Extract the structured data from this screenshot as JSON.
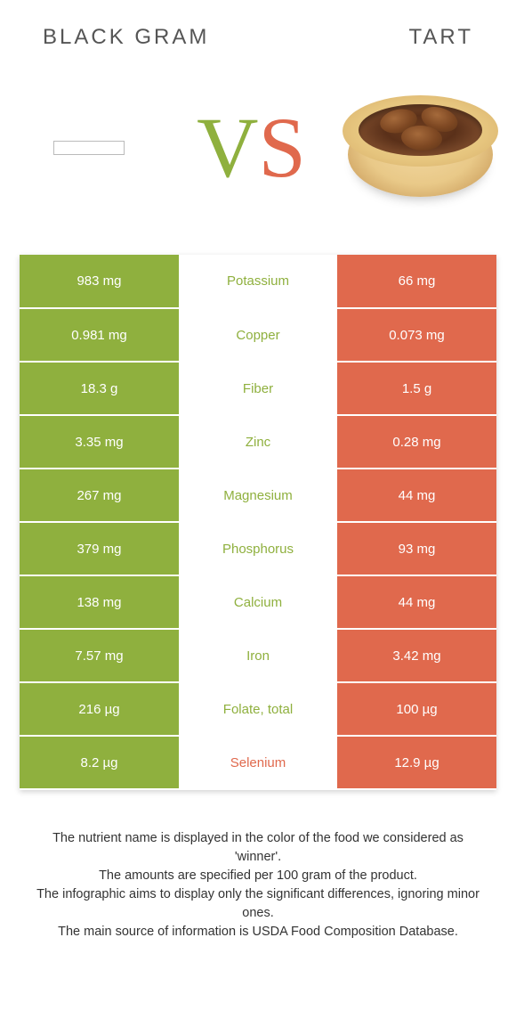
{
  "header": {
    "left": "BLACK GRAM",
    "right": "TART"
  },
  "vs": {
    "v": "V",
    "s": "S"
  },
  "colors": {
    "green": "#8fb03e",
    "orange": "#e0694d",
    "background": "#ffffff",
    "text": "#333333"
  },
  "rows": [
    {
      "left": "983 mg",
      "nutrient": "Potassium",
      "right": "66 mg",
      "winner": "green"
    },
    {
      "left": "0.981 mg",
      "nutrient": "Copper",
      "right": "0.073 mg",
      "winner": "green"
    },
    {
      "left": "18.3 g",
      "nutrient": "Fiber",
      "right": "1.5 g",
      "winner": "green"
    },
    {
      "left": "3.35 mg",
      "nutrient": "Zinc",
      "right": "0.28 mg",
      "winner": "green"
    },
    {
      "left": "267 mg",
      "nutrient": "Magnesium",
      "right": "44 mg",
      "winner": "green"
    },
    {
      "left": "379 mg",
      "nutrient": "Phosphorus",
      "right": "93 mg",
      "winner": "green"
    },
    {
      "left": "138 mg",
      "nutrient": "Calcium",
      "right": "44 mg",
      "winner": "green"
    },
    {
      "left": "7.57 mg",
      "nutrient": "Iron",
      "right": "3.42 mg",
      "winner": "green"
    },
    {
      "left": "216 µg",
      "nutrient": "Folate, total",
      "right": "100 µg",
      "winner": "green"
    },
    {
      "left": "8.2 µg",
      "nutrient": "Selenium",
      "right": "12.9 µg",
      "winner": "orange"
    }
  ],
  "footer": {
    "line1": "The nutrient name is displayed in the color of the food we considered as 'winner'.",
    "line2": "The amounts are specified per 100 gram of the product.",
    "line3": "The infographic aims to display only the significant differences, ignoring minor ones.",
    "line4": "The main source of information is USDA Food Composition Database."
  }
}
